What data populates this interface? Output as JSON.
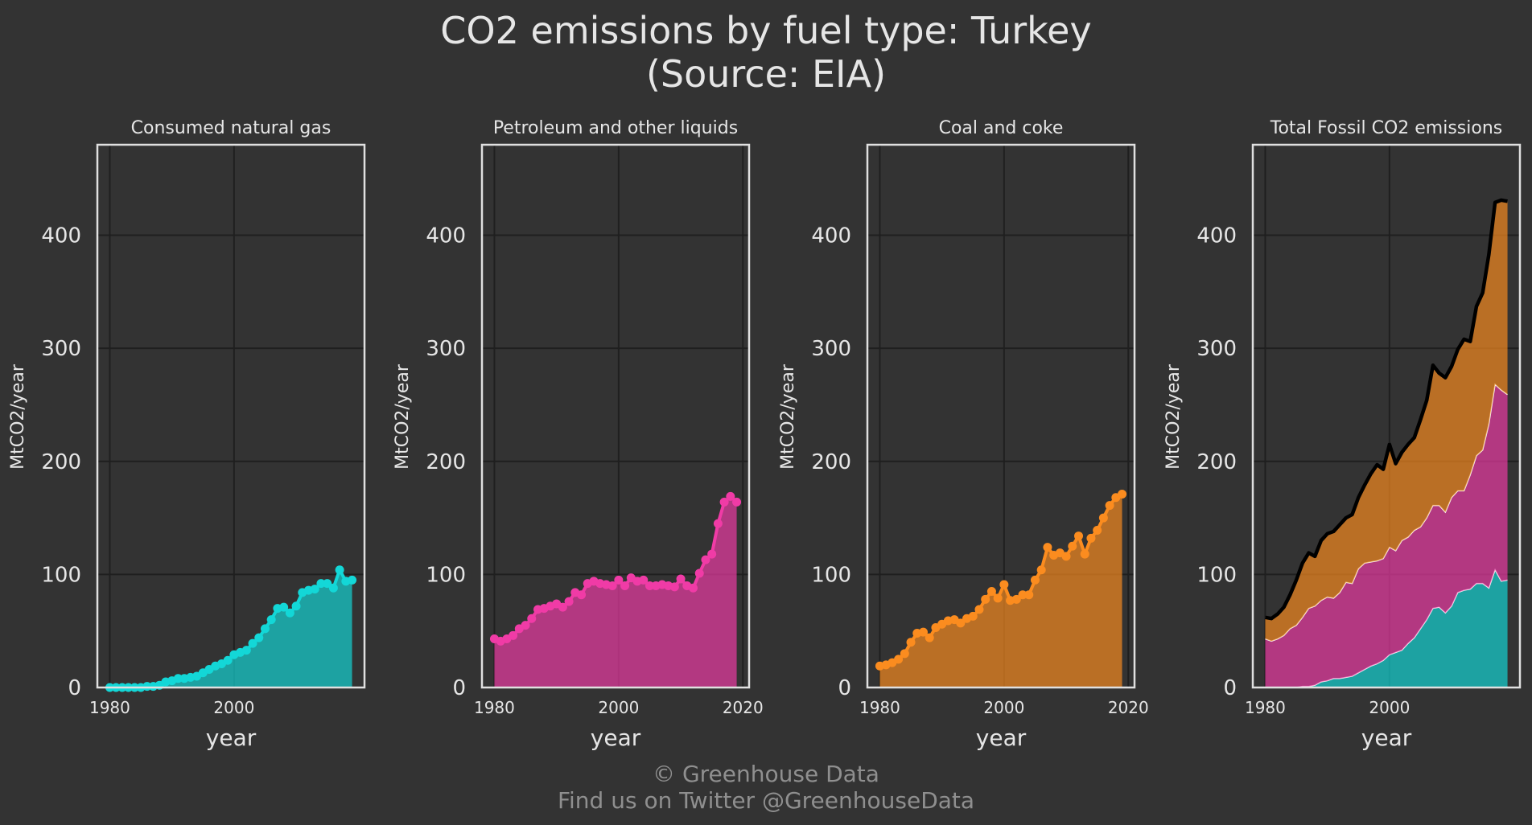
{
  "title_line1": "CO2 emissions by fuel type: Turkey",
  "title_line2": "(Source: EIA)",
  "footer_line1": "© Greenhouse Data",
  "footer_line2": "Find us on Twitter @GreenhouseData",
  "colors": {
    "background": "#333333",
    "gas": "#13d7d7",
    "petroleum": "#f03ba6",
    "coal": "#fb8c1f",
    "total": "#000000"
  },
  "chart_data": [
    {
      "type": "area",
      "title": "Consumed natural gas",
      "xlabel": "year",
      "ylabel": "MtCO2/year",
      "xlim": [
        1978,
        2021
      ],
      "ylim": [
        0,
        480
      ],
      "xticks": [
        1980,
        2000
      ],
      "yticks": [
        0,
        100,
        200,
        300,
        400
      ],
      "grid": true,
      "x": [
        1980,
        1981,
        1982,
        1983,
        1984,
        1985,
        1986,
        1987,
        1988,
        1989,
        1990,
        1991,
        1992,
        1993,
        1994,
        1995,
        1996,
        1997,
        1998,
        1999,
        2000,
        2001,
        2002,
        2003,
        2004,
        2005,
        2006,
        2007,
        2008,
        2009,
        2010,
        2011,
        2012,
        2013,
        2014,
        2015,
        2016,
        2017,
        2018,
        2019
      ],
      "series": [
        {
          "key": "gas",
          "values": [
            0,
            0,
            0,
            0,
            0,
            0,
            1,
            1,
            2,
            5,
            6,
            8,
            8,
            9,
            10,
            13,
            16,
            19,
            21,
            24,
            29,
            31,
            33,
            39,
            44,
            52,
            60,
            70,
            71,
            66,
            72,
            84,
            86,
            87,
            92,
            92,
            88,
            104,
            94,
            95
          ]
        }
      ]
    },
    {
      "type": "area",
      "title": "Petroleum and other liquids",
      "xlabel": "year",
      "ylabel": "MtCO2/year",
      "xlim": [
        1978,
        2021
      ],
      "ylim": [
        0,
        480
      ],
      "xticks": [
        1980,
        2000,
        2020
      ],
      "yticks": [
        0,
        100,
        200,
        300,
        400
      ],
      "grid": true,
      "x": [
        1980,
        1981,
        1982,
        1983,
        1984,
        1985,
        1986,
        1987,
        1988,
        1989,
        1990,
        1991,
        1992,
        1993,
        1994,
        1995,
        1996,
        1997,
        1998,
        1999,
        2000,
        2001,
        2002,
        2003,
        2004,
        2005,
        2006,
        2007,
        2008,
        2009,
        2010,
        2011,
        2012,
        2013,
        2014,
        2015,
        2016,
        2017,
        2018,
        2019
      ],
      "series": [
        {
          "key": "petroleum",
          "values": [
            43,
            41,
            43,
            46,
            52,
            55,
            61,
            69,
            70,
            72,
            74,
            71,
            76,
            84,
            82,
            92,
            94,
            92,
            91,
            90,
            95,
            90,
            97,
            94,
            95,
            90,
            90,
            91,
            90,
            89,
            96,
            90,
            88,
            101,
            113,
            118,
            145,
            164,
            169,
            164
          ]
        }
      ]
    },
    {
      "type": "area",
      "title": "Coal and coke",
      "xlabel": "year",
      "ylabel": "MtCO2/year",
      "xlim": [
        1978,
        2021
      ],
      "ylim": [
        0,
        480
      ],
      "xticks": [
        1980,
        2000,
        2020
      ],
      "yticks": [
        0,
        100,
        200,
        300,
        400
      ],
      "grid": true,
      "x": [
        1980,
        1981,
        1982,
        1983,
        1984,
        1985,
        1986,
        1987,
        1988,
        1989,
        1990,
        1991,
        1992,
        1993,
        1994,
        1995,
        1996,
        1997,
        1998,
        1999,
        2000,
        2001,
        2002,
        2003,
        2004,
        2005,
        2006,
        2007,
        2008,
        2009,
        2010,
        2011,
        2012,
        2013,
        2014,
        2015,
        2016,
        2017,
        2018,
        2019
      ],
      "series": [
        {
          "key": "coal",
          "values": [
            19,
            20,
            22,
            25,
            30,
            40,
            48,
            49,
            44,
            53,
            56,
            59,
            60,
            57,
            61,
            63,
            69,
            78,
            85,
            79,
            91,
            77,
            78,
            82,
            82,
            95,
            104,
            124,
            117,
            119,
            116,
            125,
            134,
            118,
            132,
            139,
            150,
            161,
            168,
            171
          ]
        }
      ]
    },
    {
      "type": "stacked-area",
      "title": "Total Fossil CO2 emissions",
      "xlabel": "year",
      "ylabel": "MtCO2/year",
      "xlim": [
        1978,
        2021
      ],
      "ylim": [
        0,
        480
      ],
      "xticks": [
        1980,
        2000
      ],
      "yticks": [
        0,
        100,
        200,
        300,
        400
      ],
      "grid": true,
      "x": [
        1980,
        1981,
        1982,
        1983,
        1984,
        1985,
        1986,
        1987,
        1988,
        1989,
        1990,
        1991,
        1992,
        1993,
        1994,
        1995,
        1996,
        1997,
        1998,
        1999,
        2000,
        2001,
        2002,
        2003,
        2004,
        2005,
        2006,
        2007,
        2008,
        2009,
        2010,
        2011,
        2012,
        2013,
        2014,
        2015,
        2016,
        2017,
        2018,
        2019
      ],
      "series": [
        {
          "key": "gas",
          "values": [
            0,
            0,
            0,
            0,
            0,
            0,
            1,
            1,
            2,
            5,
            6,
            8,
            8,
            9,
            10,
            13,
            16,
            19,
            21,
            24,
            29,
            31,
            33,
            39,
            44,
            52,
            60,
            70,
            71,
            66,
            72,
            84,
            86,
            87,
            92,
            92,
            88,
            104,
            94,
            95
          ]
        },
        {
          "key": "petroleum",
          "values": [
            43,
            41,
            43,
            46,
            52,
            55,
            61,
            69,
            70,
            72,
            74,
            71,
            76,
            84,
            82,
            92,
            94,
            92,
            91,
            90,
            95,
            90,
            97,
            94,
            95,
            90,
            90,
            91,
            90,
            89,
            96,
            90,
            88,
            101,
            113,
            118,
            145,
            164,
            169,
            164
          ]
        },
        {
          "key": "coal",
          "values": [
            19,
            20,
            22,
            25,
            30,
            40,
            48,
            49,
            44,
            53,
            56,
            59,
            60,
            57,
            61,
            63,
            69,
            78,
            85,
            79,
            91,
            77,
            78,
            82,
            82,
            95,
            104,
            124,
            117,
            119,
            116,
            125,
            134,
            118,
            132,
            139,
            150,
            161,
            168,
            171
          ]
        }
      ],
      "total_line": true
    }
  ]
}
